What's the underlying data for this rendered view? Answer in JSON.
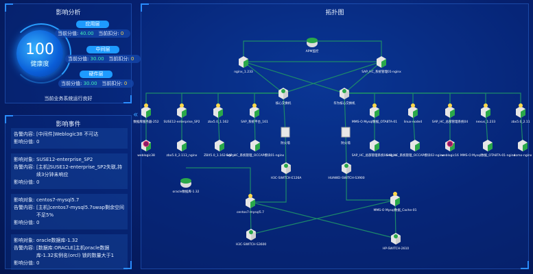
{
  "analysis": {
    "title": "影响分析",
    "score": "100",
    "score_label": "健康度",
    "layers": [
      {
        "name": "应用层",
        "score_label": "当前分值:",
        "score": "40.00",
        "deduct_label": "当前扣分:",
        "deduct": "0"
      },
      {
        "name": "中间层",
        "score_label": "当前分值:",
        "score": "30.00",
        "deduct_label": "当前扣分:",
        "deduct": "0"
      },
      {
        "name": "硬件层",
        "score_label": "当前分值:",
        "score": "30.00",
        "deduct_label": "当前扣分:",
        "deduct": "0"
      }
    ],
    "status": "当前业务系统运行良好"
  },
  "events": {
    "title": "影响事件",
    "items": [
      {
        "object_label": "",
        "object": "",
        "content_label": "告警内容:",
        "content": "[中间件]Weblogic38 不可达",
        "score_label": "影响分值:",
        "score": "0"
      },
      {
        "object_label": "影响对象:",
        "object": "SUSE12-enterprise_SP2",
        "content_label": "告警内容:",
        "content": "[主机]SUSE12-enterprise_SP2失联,持续3分钟未响应",
        "score_label": "影响分值:",
        "score": "0"
      },
      {
        "object_label": "影响对象:",
        "object": "centos7-mysql5.7",
        "content_label": "告警内容:",
        "content": "[主机]centos7-mysql5.7swap剩余空间不足5%",
        "score_label": "影响分值:",
        "score": "0"
      },
      {
        "object_label": "影响对象:",
        "object": "oracle数据库-1.32",
        "content_label": "告警内容:",
        "content": "[数据库:ORACLE]主机oracle数据库-1.32实例名(orcl) 锁的数量大于1",
        "score_label": "影响分值:",
        "score": "0"
      }
    ]
  },
  "topology": {
    "title": "拓扑图",
    "nodes": [
      {
        "id": "apm",
        "label": "APM监控",
        "type": "db"
      },
      {
        "id": "ng1",
        "label": "nginx_1.233",
        "type": "app"
      },
      {
        "id": "ng2",
        "label": "SAP_HC_系统管理01-nginx",
        "type": "app"
      },
      {
        "id": "sw1",
        "label": "核心交换机",
        "type": "switch"
      },
      {
        "id": "sw2",
        "label": "华为核心交换机",
        "type": "switch"
      },
      {
        "id": "a1",
        "label": "数据库服务器-252",
        "type": "host"
      },
      {
        "id": "a2",
        "label": "SUSE12-enterprise_SP2",
        "type": "host"
      },
      {
        "id": "a3",
        "label": "zbx5.0_1.162",
        "type": "host"
      },
      {
        "id": "a4",
        "label": "SAP_系统平台_161",
        "type": "host"
      },
      {
        "id": "a5",
        "label": "MMS-O Mysql数据_OTA8TA-01",
        "type": "host"
      },
      {
        "id": "a6",
        "label": "linux-node4",
        "type": "host"
      },
      {
        "id": "a7",
        "label": "SAP_HC_总部管理系统04",
        "type": "host"
      },
      {
        "id": "a8",
        "label": "nexus_1.233",
        "type": "host"
      },
      {
        "id": "a9",
        "label": "zbx5.0_2.11",
        "type": "host"
      },
      {
        "id": "b1",
        "label": "weblogic38",
        "type": "weblogic"
      },
      {
        "id": "b2",
        "label": "zbx5.0_2.113_nginx",
        "type": "app"
      },
      {
        "id": "b3",
        "label": "ZBX5.0_1.162-nginx",
        "type": "app"
      },
      {
        "id": "b4",
        "label": "SAP_HC_系统管理_OCCAP模块01-nginx",
        "type": "app"
      },
      {
        "id": "b5",
        "label": "SAP_HC_总部管理系统04-nginx",
        "type": "app"
      },
      {
        "id": "b6",
        "label": "SAP_HC_系统管理_OCCAP模块02-nginx",
        "type": "app"
      },
      {
        "id": "b7",
        "label": "weblogic16",
        "type": "weblogic"
      },
      {
        "id": "b8",
        "label": "MMS-O Mysql数据_OTA8TA-01-nginx",
        "type": "app"
      },
      {
        "id": "b9",
        "label": "domo-nginx",
        "type": "app"
      },
      {
        "id": "fw1",
        "label": "防火墙",
        "type": "firewall"
      },
      {
        "id": "fw2",
        "label": "防火墙",
        "type": "firewall"
      },
      {
        "id": "h3c1",
        "label": "H3C-SWITCH-E126A",
        "type": "switch"
      },
      {
        "id": "hw",
        "label": "HUAWEI-SWITCH-S3900",
        "type": "switch"
      },
      {
        "id": "ora",
        "label": "oracle数据库-1.32",
        "type": "db"
      },
      {
        "id": "cen",
        "label": "centos7-mysql5.7",
        "type": "host"
      },
      {
        "id": "mms",
        "label": "MMS-O Mysql数据_Cache-01",
        "type": "host"
      },
      {
        "id": "h3c2",
        "label": "H3C-SWITCH-S3600",
        "type": "switch"
      },
      {
        "id": "hp",
        "label": "HP-SWITCH-2610",
        "type": "switch"
      }
    ],
    "edges": [
      [
        "apm",
        "ng1"
      ],
      [
        "apm",
        "ng2"
      ],
      [
        "ng1",
        "ng2"
      ],
      [
        "ng1",
        "sw1"
      ],
      [
        "ng1",
        "sw2"
      ],
      [
        "ng2",
        "sw1"
      ],
      [
        "ng2",
        "sw2"
      ],
      [
        "sw1",
        "a1"
      ],
      [
        "sw1",
        "a2"
      ],
      [
        "sw1",
        "a3"
      ],
      [
        "sw1",
        "a4"
      ],
      [
        "sw2",
        "a5"
      ],
      [
        "sw2",
        "a6"
      ],
      [
        "sw2",
        "a7"
      ],
      [
        "sw2",
        "a8"
      ],
      [
        "sw2",
        "a9"
      ],
      [
        "a1",
        "b1"
      ],
      [
        "a2",
        "b2"
      ],
      [
        "a3",
        "b3"
      ],
      [
        "a4",
        "b4"
      ],
      [
        "a5",
        "b5"
      ],
      [
        "a6",
        "b6"
      ],
      [
        "a7",
        "b7"
      ],
      [
        "a8",
        "b8"
      ],
      [
        "a9",
        "b9"
      ],
      [
        "sw1",
        "fw1"
      ],
      [
        "fw1",
        "h3c1"
      ],
      [
        "sw2",
        "fw2"
      ],
      [
        "fw2",
        "hw"
      ],
      [
        "h3c1",
        "cen"
      ],
      [
        "hw",
        "mms"
      ],
      [
        "ora",
        "cen"
      ],
      [
        "cen",
        "h3c2"
      ],
      [
        "cen",
        "hp"
      ],
      [
        "mms",
        "h3c2"
      ],
      [
        "mms",
        "hp"
      ]
    ]
  },
  "colors": {
    "line": "#1d8a6a",
    "node_green": "#2aa84a",
    "accent": "#1e9bff"
  }
}
